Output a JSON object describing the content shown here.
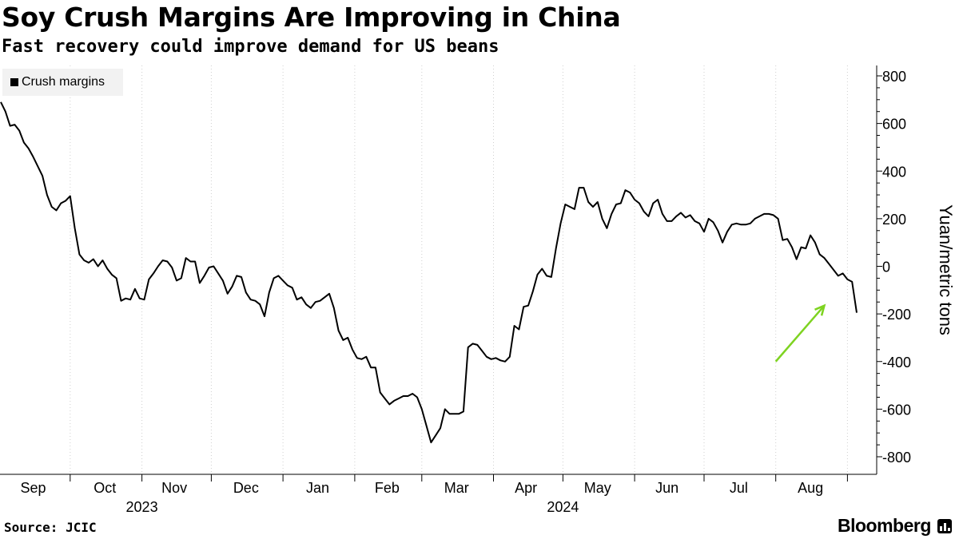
{
  "header": {
    "title": "Soy Crush Margins Are Improving in China",
    "subtitle": "Fast recovery could improve demand for US beans"
  },
  "footer": {
    "source": "Source: JCIC",
    "brand": "Bloomberg"
  },
  "chart_data": {
    "type": "line",
    "title": "Soy Crush Margins Are Improving in China",
    "subtitle": "Fast recovery could improve demand for US beans",
    "ylabel": "Yuan/metric tons",
    "xlabel": "",
    "ylim": [
      -850,
      830
    ],
    "yticks": [
      -800,
      -600,
      -400,
      -200,
      0,
      200,
      400,
      600,
      800
    ],
    "ytick_labels": [
      "-800",
      "-600",
      "-400",
      "-200",
      "0",
      "200",
      "400",
      "600",
      "800"
    ],
    "y_axis_side": "right",
    "grid": "vertical-dotted",
    "legend": {
      "placement": "top-left",
      "entries": [
        "Crush margins"
      ]
    },
    "month_labels": [
      {
        "label": "Sep",
        "center": "2023-09-15"
      },
      {
        "label": "Oct",
        "center": "2023-10-16"
      },
      {
        "label": "Nov",
        "center": "2023-11-15"
      },
      {
        "label": "Dec",
        "center": "2023-12-16"
      },
      {
        "label": "Jan",
        "center": "2024-01-16"
      },
      {
        "label": "Feb",
        "center": "2024-02-15"
      },
      {
        "label": "Mar",
        "center": "2024-03-16"
      },
      {
        "label": "Apr",
        "center": "2024-04-15"
      },
      {
        "label": "May",
        "center": "2024-05-16"
      },
      {
        "label": "Jun",
        "center": "2024-06-15"
      },
      {
        "label": "Jul",
        "center": "2024-07-16"
      },
      {
        "label": "Aug",
        "center": "2024-08-16"
      }
    ],
    "year_labels": [
      {
        "label": "2023",
        "center": "2023-11-01"
      },
      {
        "label": "2024",
        "center": "2024-05-01"
      }
    ],
    "month_boundaries": [
      "2023-10-01",
      "2023-11-01",
      "2023-12-01",
      "2024-01-01",
      "2024-02-01",
      "2024-03-01",
      "2024-04-01",
      "2024-05-01",
      "2024-06-01",
      "2024-07-01",
      "2024-08-01",
      "2024-09-01"
    ],
    "annotation": {
      "type": "arrow",
      "color": "#7ed321",
      "from": {
        "x": "2024-08-01",
        "y": -400
      },
      "to": {
        "x": "2024-08-22",
        "y": -165
      }
    },
    "x_range": [
      "2023-09-01",
      "2024-09-05"
    ],
    "series": [
      {
        "name": "Crush margins",
        "color": "#000000",
        "points": [
          [
            "2023-09-01",
            690
          ],
          [
            "2023-09-03",
            650
          ],
          [
            "2023-09-05",
            590
          ],
          [
            "2023-09-07",
            595
          ],
          [
            "2023-09-09",
            570
          ],
          [
            "2023-09-11",
            520
          ],
          [
            "2023-09-13",
            495
          ],
          [
            "2023-09-15",
            460
          ],
          [
            "2023-09-17",
            420
          ],
          [
            "2023-09-19",
            380
          ],
          [
            "2023-09-21",
            300
          ],
          [
            "2023-09-23",
            250
          ],
          [
            "2023-09-25",
            235
          ],
          [
            "2023-09-27",
            265
          ],
          [
            "2023-09-29",
            275
          ],
          [
            "2023-10-01",
            295
          ],
          [
            "2023-10-03",
            160
          ],
          [
            "2023-10-05",
            50
          ],
          [
            "2023-10-07",
            25
          ],
          [
            "2023-10-09",
            15
          ],
          [
            "2023-10-11",
            30
          ],
          [
            "2023-10-13",
            0
          ],
          [
            "2023-10-15",
            25
          ],
          [
            "2023-10-17",
            -10
          ],
          [
            "2023-10-19",
            -35
          ],
          [
            "2023-10-21",
            -50
          ],
          [
            "2023-10-23",
            -145
          ],
          [
            "2023-10-25",
            -135
          ],
          [
            "2023-10-27",
            -140
          ],
          [
            "2023-10-29",
            -95
          ],
          [
            "2023-10-31",
            -135
          ],
          [
            "2023-11-02",
            -140
          ],
          [
            "2023-11-04",
            -55
          ],
          [
            "2023-11-06",
            -30
          ],
          [
            "2023-11-08",
            0
          ],
          [
            "2023-11-10",
            25
          ],
          [
            "2023-11-12",
            20
          ],
          [
            "2023-11-14",
            -5
          ],
          [
            "2023-11-16",
            -60
          ],
          [
            "2023-11-18",
            -50
          ],
          [
            "2023-11-20",
            35
          ],
          [
            "2023-11-22",
            20
          ],
          [
            "2023-11-24",
            20
          ],
          [
            "2023-11-26",
            -70
          ],
          [
            "2023-11-28",
            -40
          ],
          [
            "2023-11-30",
            -5
          ],
          [
            "2023-12-02",
            0
          ],
          [
            "2023-12-04",
            -30
          ],
          [
            "2023-12-06",
            -60
          ],
          [
            "2023-12-08",
            -115
          ],
          [
            "2023-12-10",
            -85
          ],
          [
            "2023-12-12",
            -40
          ],
          [
            "2023-12-14",
            -45
          ],
          [
            "2023-12-16",
            -110
          ],
          [
            "2023-12-18",
            -140
          ],
          [
            "2023-12-20",
            -145
          ],
          [
            "2023-12-22",
            -160
          ],
          [
            "2023-12-24",
            -210
          ],
          [
            "2023-12-26",
            -110
          ],
          [
            "2023-12-28",
            -50
          ],
          [
            "2023-12-30",
            -40
          ],
          [
            "2024-01-01",
            -60
          ],
          [
            "2024-01-03",
            -80
          ],
          [
            "2024-01-05",
            -90
          ],
          [
            "2024-01-07",
            -140
          ],
          [
            "2024-01-09",
            -130
          ],
          [
            "2024-01-11",
            -160
          ],
          [
            "2024-01-13",
            -175
          ],
          [
            "2024-01-15",
            -150
          ],
          [
            "2024-01-17",
            -145
          ],
          [
            "2024-01-19",
            -130
          ],
          [
            "2024-01-21",
            -115
          ],
          [
            "2024-01-23",
            -175
          ],
          [
            "2024-01-25",
            -270
          ],
          [
            "2024-01-27",
            -310
          ],
          [
            "2024-01-29",
            -300
          ],
          [
            "2024-01-31",
            -350
          ],
          [
            "2024-02-02",
            -385
          ],
          [
            "2024-02-04",
            -390
          ],
          [
            "2024-02-06",
            -380
          ],
          [
            "2024-02-08",
            -425
          ],
          [
            "2024-02-10",
            -425
          ],
          [
            "2024-02-12",
            -530
          ],
          [
            "2024-02-14",
            -555
          ],
          [
            "2024-02-16",
            -580
          ],
          [
            "2024-02-18",
            -565
          ],
          [
            "2024-02-20",
            -555
          ],
          [
            "2024-02-22",
            -545
          ],
          [
            "2024-02-24",
            -545
          ],
          [
            "2024-02-26",
            -535
          ],
          [
            "2024-02-28",
            -550
          ],
          [
            "2024-03-01",
            -600
          ],
          [
            "2024-03-03",
            -670
          ],
          [
            "2024-03-05",
            -740
          ],
          [
            "2024-03-07",
            -710
          ],
          [
            "2024-03-09",
            -680
          ],
          [
            "2024-03-11",
            -600
          ],
          [
            "2024-03-13",
            -620
          ],
          [
            "2024-03-15",
            -620
          ],
          [
            "2024-03-17",
            -620
          ],
          [
            "2024-03-19",
            -610
          ],
          [
            "2024-03-21",
            -340
          ],
          [
            "2024-03-23",
            -325
          ],
          [
            "2024-03-25",
            -330
          ],
          [
            "2024-03-27",
            -355
          ],
          [
            "2024-03-29",
            -380
          ],
          [
            "2024-03-31",
            -390
          ],
          [
            "2024-04-02",
            -385
          ],
          [
            "2024-04-04",
            -395
          ],
          [
            "2024-04-06",
            -400
          ],
          [
            "2024-04-08",
            -380
          ],
          [
            "2024-04-10",
            -250
          ],
          [
            "2024-04-12",
            -265
          ],
          [
            "2024-04-14",
            -170
          ],
          [
            "2024-04-16",
            -165
          ],
          [
            "2024-04-18",
            -105
          ],
          [
            "2024-04-20",
            -35
          ],
          [
            "2024-04-22",
            -10
          ],
          [
            "2024-04-24",
            -40
          ],
          [
            "2024-04-26",
            -45
          ],
          [
            "2024-04-28",
            75
          ],
          [
            "2024-04-30",
            180
          ],
          [
            "2024-05-02",
            260
          ],
          [
            "2024-05-04",
            250
          ],
          [
            "2024-05-06",
            240
          ],
          [
            "2024-05-08",
            330
          ],
          [
            "2024-05-10",
            330
          ],
          [
            "2024-05-12",
            270
          ],
          [
            "2024-05-14",
            250
          ],
          [
            "2024-05-16",
            270
          ],
          [
            "2024-05-18",
            200
          ],
          [
            "2024-05-20",
            160
          ],
          [
            "2024-05-22",
            220
          ],
          [
            "2024-05-24",
            260
          ],
          [
            "2024-05-26",
            265
          ],
          [
            "2024-05-28",
            320
          ],
          [
            "2024-05-30",
            310
          ],
          [
            "2024-06-01",
            280
          ],
          [
            "2024-06-03",
            265
          ],
          [
            "2024-06-05",
            230
          ],
          [
            "2024-06-07",
            210
          ],
          [
            "2024-06-09",
            265
          ],
          [
            "2024-06-11",
            280
          ],
          [
            "2024-06-13",
            220
          ],
          [
            "2024-06-15",
            190
          ],
          [
            "2024-06-17",
            190
          ],
          [
            "2024-06-19",
            210
          ],
          [
            "2024-06-21",
            225
          ],
          [
            "2024-06-23",
            205
          ],
          [
            "2024-06-25",
            215
          ],
          [
            "2024-06-27",
            190
          ],
          [
            "2024-06-29",
            180
          ],
          [
            "2024-07-01",
            145
          ],
          [
            "2024-07-03",
            200
          ],
          [
            "2024-07-05",
            185
          ],
          [
            "2024-07-07",
            150
          ],
          [
            "2024-07-09",
            100
          ],
          [
            "2024-07-11",
            145
          ],
          [
            "2024-07-13",
            175
          ],
          [
            "2024-07-15",
            180
          ],
          [
            "2024-07-17",
            175
          ],
          [
            "2024-07-19",
            175
          ],
          [
            "2024-07-21",
            180
          ],
          [
            "2024-07-23",
            200
          ],
          [
            "2024-07-25",
            210
          ],
          [
            "2024-07-27",
            220
          ],
          [
            "2024-07-29",
            220
          ],
          [
            "2024-07-31",
            215
          ],
          [
            "2024-08-02",
            200
          ],
          [
            "2024-08-04",
            110
          ],
          [
            "2024-08-06",
            115
          ],
          [
            "2024-08-08",
            80
          ],
          [
            "2024-08-10",
            30
          ],
          [
            "2024-08-12",
            80
          ],
          [
            "2024-08-14",
            75
          ],
          [
            "2024-08-16",
            130
          ],
          [
            "2024-08-18",
            100
          ],
          [
            "2024-08-20",
            50
          ],
          [
            "2024-08-22",
            35
          ],
          [
            "2024-08-24",
            10
          ],
          [
            "2024-08-26",
            -15
          ],
          [
            "2024-08-28",
            -40
          ],
          [
            "2024-08-30",
            -30
          ],
          [
            "2024-09-01",
            -55
          ],
          [
            "2024-09-03",
            -65
          ],
          [
            "2024-09-05",
            -195
          ]
        ]
      }
    ]
  }
}
